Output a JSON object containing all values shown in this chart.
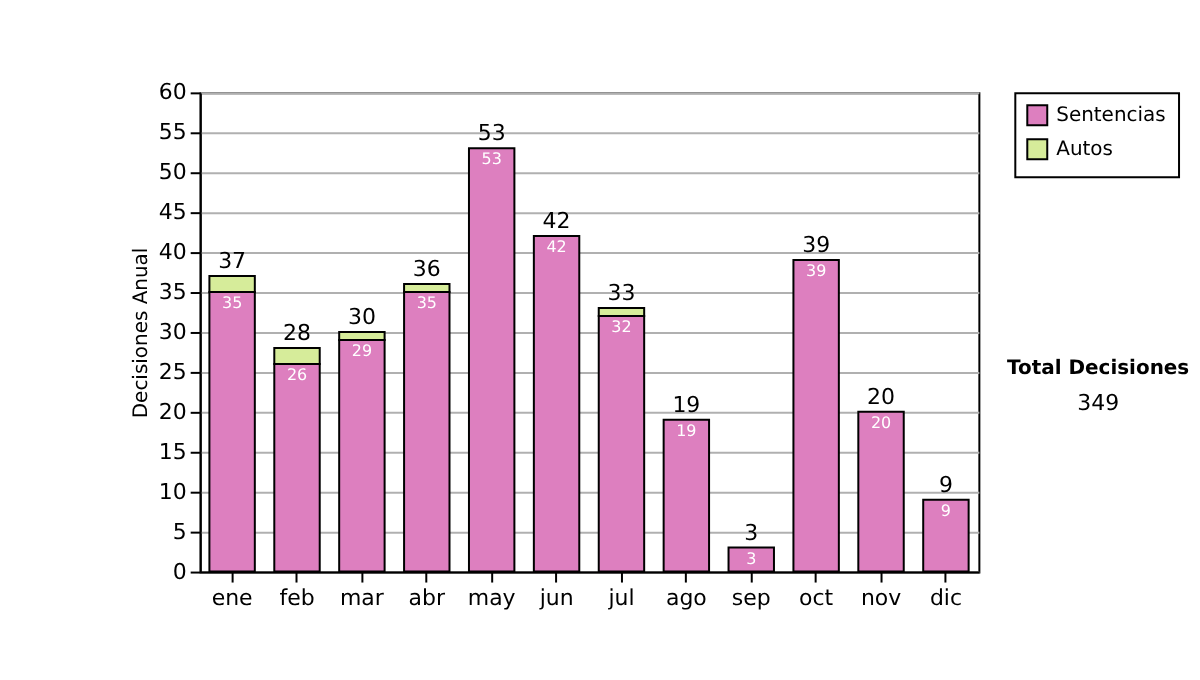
{
  "chart_data": {
    "type": "bar",
    "stacked": true,
    "ylabel": "Decisiones Anual",
    "categories": [
      "ene",
      "feb",
      "mar",
      "abr",
      "may",
      "jun",
      "jul",
      "ago",
      "sep",
      "oct",
      "nov",
      "dic"
    ],
    "series": [
      {
        "name": "Sentencias",
        "color": "#dd7fbf",
        "values": [
          35,
          26,
          29,
          35,
          53,
          42,
          32,
          19,
          3,
          39,
          20,
          9
        ],
        "value_labels": [
          "35",
          "26",
          "29",
          "35",
          "53",
          "42",
          "32",
          "19",
          "3",
          "39",
          "20",
          "9"
        ]
      },
      {
        "name": "Autos",
        "color": "#d6ec9a",
        "values": [
          2,
          2,
          1,
          1,
          0,
          0,
          1,
          0,
          0,
          0,
          0,
          0
        ]
      }
    ],
    "totals": [
      "37",
      "28",
      "30",
      "36",
      "53",
      "42",
      "33",
      "19",
      "3",
      "39",
      "20",
      "9"
    ],
    "ylim": [
      0,
      60
    ],
    "yticks": [
      0,
      5,
      10,
      15,
      20,
      25,
      30,
      35,
      40,
      45,
      50,
      55,
      60
    ],
    "grid": "y",
    "legend": "right",
    "annotations": [
      "Total Decisiones",
      "349"
    ]
  }
}
